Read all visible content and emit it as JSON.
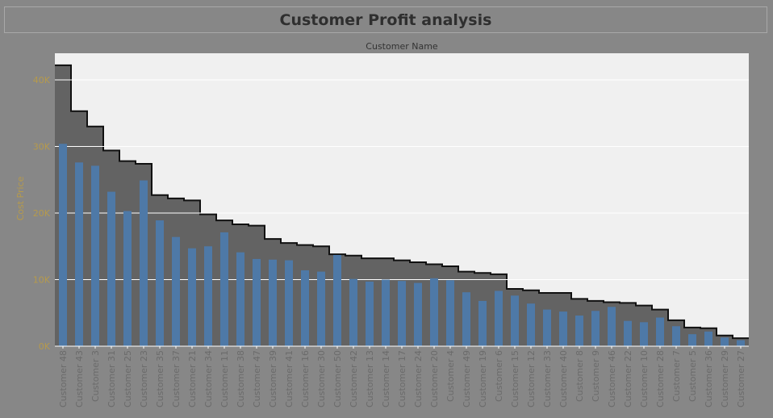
{
  "title": "Customer Profit analysis",
  "colors": {
    "page_background": "#878787",
    "plot_background": "#f0f0f0",
    "area_fill": "#636363",
    "step_line": "#111111",
    "bar": "#4e79a7",
    "axis_text": "#b69a4c",
    "tick_label": "#6b6b6b"
  },
  "chart_data": {
    "type": "bar",
    "title": "Customer Profit analysis",
    "column_header": "Customer Name",
    "ylabel": "Cost Price",
    "ylim": [
      0,
      44000
    ],
    "yticks": [
      0,
      10000,
      20000,
      30000,
      40000
    ],
    "ytick_labels": [
      "0K",
      "10K",
      "20K",
      "30K",
      "40K"
    ],
    "grid": true,
    "categories": [
      "Customer 48",
      "Customer 43",
      "Customer 3",
      "Customer 31",
      "Customer 25",
      "Customer 23",
      "Customer 35",
      "Customer 37",
      "Customer 21",
      "Customer 34",
      "Customer 11",
      "Customer 38",
      "Customer 47",
      "Customer 39",
      "Customer 41",
      "Customer 16",
      "Customer 30",
      "Customer 50",
      "Customer 42",
      "Customer 13",
      "Customer 14",
      "Customer 17",
      "Customer 24",
      "Customer 20",
      "Customer 4",
      "Customer 49",
      "Customer 19",
      "Customer 6",
      "Customer 15",
      "Customer 12",
      "Customer 33",
      "Customer 40",
      "Customer 8",
      "Customer 9",
      "Customer 46",
      "Customer 22",
      "Customer 10",
      "Customer 28",
      "Customer 7",
      "Customer 5",
      "Customer 36",
      "Customer 29",
      "Customer 27"
    ],
    "series": [
      {
        "type": "area-step",
        "values": [
          42200,
          35300,
          33000,
          29400,
          27800,
          27400,
          22700,
          22200,
          21900,
          19800,
          18900,
          18300,
          18100,
          16100,
          15500,
          15200,
          15000,
          13800,
          13600,
          13200,
          13200,
          12900,
          12600,
          12300,
          12000,
          11200,
          11000,
          10800,
          8600,
          8400,
          8000,
          8000,
          7100,
          6800,
          6600,
          6500,
          6100,
          5500,
          3900,
          2800,
          2700,
          1600,
          1200
        ]
      },
      {
        "type": "bar",
        "values": [
          30400,
          27600,
          27100,
          23200,
          20300,
          24900,
          18900,
          16400,
          14700,
          15000,
          17100,
          14100,
          13100,
          13000,
          12900,
          11400,
          11200,
          13700,
          10100,
          9700,
          10000,
          9800,
          9500,
          10200,
          9900,
          8100,
          6800,
          8300,
          7600,
          6400,
          5500,
          5200,
          4600,
          5300,
          5900,
          3800,
          3600,
          4300,
          3000,
          1800,
          2200,
          1300,
          900
        ]
      }
    ]
  }
}
